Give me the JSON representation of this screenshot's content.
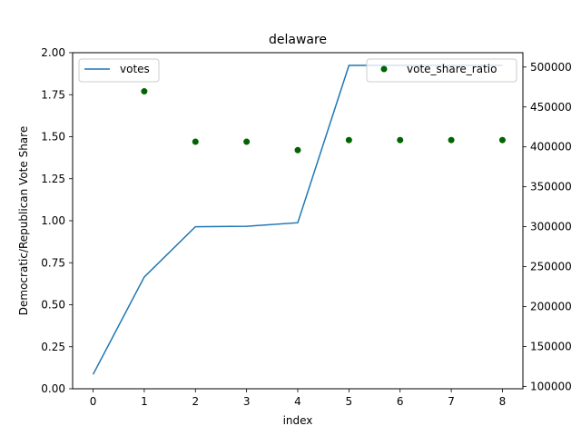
{
  "chart_data": {
    "type": "line+scatter",
    "title": "delaware",
    "xlabel": "index",
    "ylabel": "Democratic/Republican Vote Share",
    "y2label": "",
    "x": [
      0,
      1,
      2,
      3,
      4,
      5,
      6,
      7,
      8
    ],
    "xlim": [
      -0.4,
      8.4
    ],
    "ylim": [
      0,
      2
    ],
    "y2lim": [
      97000,
      518000
    ],
    "x_ticks": [
      0,
      1,
      2,
      3,
      4,
      5,
      6,
      7,
      8
    ],
    "y_ticks": [
      "0.00",
      "0.25",
      "0.50",
      "0.75",
      "1.00",
      "1.25",
      "1.50",
      "1.75",
      "2.00"
    ],
    "y2_ticks": [
      "100000",
      "150000",
      "200000",
      "250000",
      "300000",
      "350000",
      "400000",
      "450000",
      "500000"
    ],
    "grid": false,
    "series": [
      {
        "name": "votes",
        "kind": "line",
        "axis": "right",
        "color": "#1f77b4",
        "values": [
          115000,
          237000,
          300000,
          300500,
          305000,
          502000,
          502000,
          502000,
          502000
        ],
        "legend_position": "top-left"
      },
      {
        "name": "vote_share_ratio",
        "kind": "scatter",
        "axis": "left",
        "color": "#006400",
        "values": [
          null,
          1.77,
          1.47,
          1.47,
          1.42,
          1.48,
          1.48,
          1.48,
          1.48
        ],
        "legend_position": "top-right"
      }
    ]
  }
}
